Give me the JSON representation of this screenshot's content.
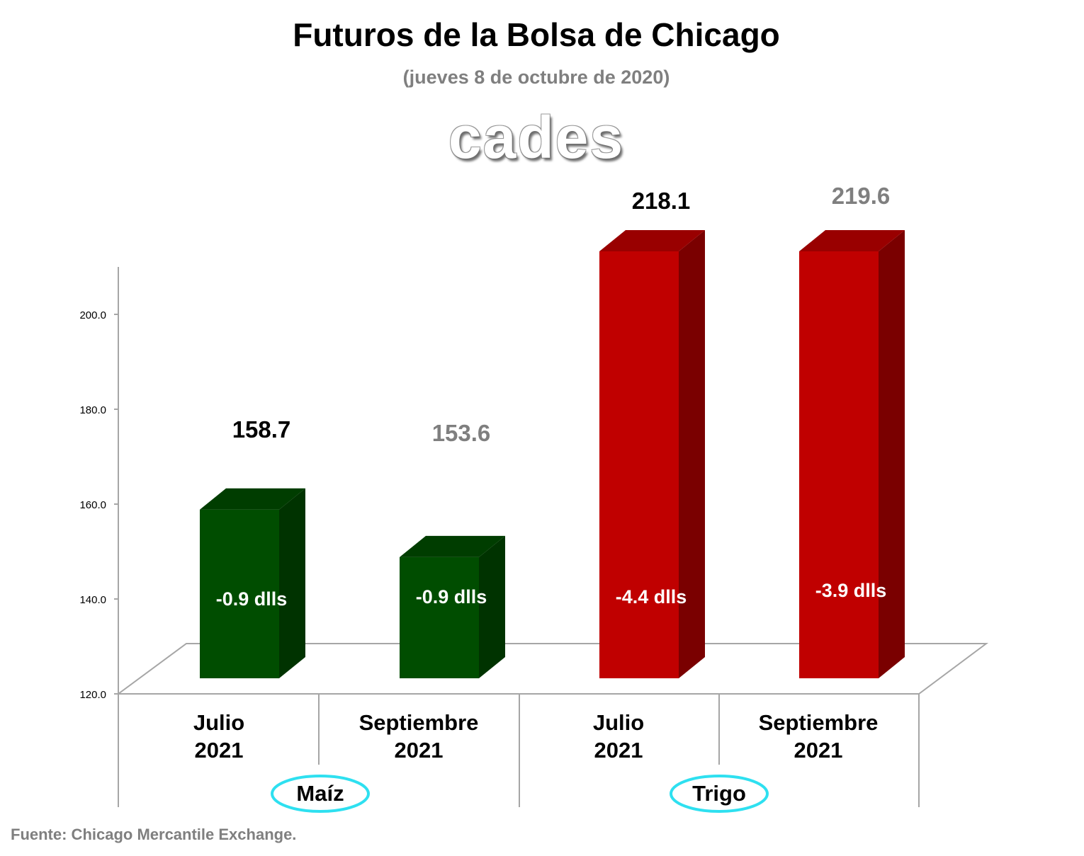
{
  "title": "Futuros de la Bolsa de Chicago",
  "subtitle": "(jueves 8 de octubre de 2020)",
  "logo_text": "cades",
  "source": "Fuente: Chicago Mercantile Exchange.",
  "chart_data": {
    "type": "bar",
    "categories": [
      {
        "line1": "Julio",
        "line2": "2021",
        "group": "Maíz"
      },
      {
        "line1": "Septiembre",
        "line2": "2021",
        "group": "Maíz"
      },
      {
        "line1": "Julio",
        "line2": "2021",
        "group": "Trigo"
      },
      {
        "line1": "Septiembre",
        "line2": "2021",
        "group": "Trigo"
      }
    ],
    "groups": [
      "Maíz",
      "Trigo"
    ],
    "values": [
      158.7,
      153.6,
      218.1,
      219.6
    ],
    "value_labels": [
      "158.7",
      "153.6",
      "218.1",
      "219.6"
    ],
    "change_labels": [
      "-0.9 dlls",
      "-0.9 dlls",
      "-4.4 dlls",
      "-3.9 dlls"
    ],
    "yticks": [
      "120.0",
      "140.0",
      "160.0",
      "180.0",
      "200.0"
    ],
    "ylim": [
      120,
      210
    ],
    "colors": {
      "maiz_front": "#004d00",
      "maiz_side": "#003300",
      "maiz_top": "#003d00",
      "trigo_front": "#c00000",
      "trigo_side": "#7a0000",
      "trigo_top": "#990000",
      "label_dark": "#000000",
      "label_gray": "#7f7f7f",
      "group_ellipse": "#2ee0f0",
      "axis": "#a6a6a6"
    },
    "grid": false
  }
}
